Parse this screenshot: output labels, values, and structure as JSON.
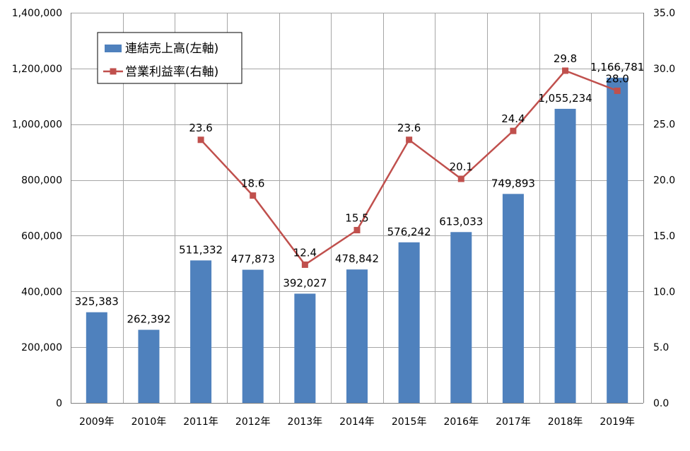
{
  "chart_data": {
    "type": "bar+line",
    "categories": [
      "2009年",
      "2010年",
      "2011年",
      "2012年",
      "2013年",
      "2014年",
      "2015年",
      "2016年",
      "2017年",
      "2018年",
      "2019年"
    ],
    "series": [
      {
        "name": "連結売上高(左軸)",
        "type": "bar",
        "axis": "left",
        "color": "#4f81bd",
        "values": [
          325383,
          262392,
          511332,
          477873,
          392027,
          478842,
          576242,
          613033,
          749893,
          1055234,
          1166781
        ],
        "labels": [
          "325,383",
          "262,392",
          "511,332",
          "477,873",
          "392,027",
          "478,842",
          "576,242",
          "613,033",
          "749,893",
          "1,055,234",
          "1,166,781"
        ]
      },
      {
        "name": "営業利益率(右軸)",
        "type": "line",
        "axis": "right",
        "color": "#c0504d",
        "values": [
          null,
          null,
          23.6,
          18.6,
          12.4,
          15.5,
          23.6,
          20.1,
          24.4,
          29.8,
          28.0
        ],
        "labels": [
          "",
          "",
          "23.6",
          "18.6",
          "12.4",
          "15.5",
          "23.6",
          "20.1",
          "24.4",
          "29.8",
          "28.0"
        ]
      }
    ],
    "y_left": {
      "range": [
        0,
        1400000
      ],
      "ticks": [
        0,
        200000,
        400000,
        600000,
        800000,
        1000000,
        1200000,
        1400000
      ],
      "tick_labels": [
        "0",
        "200,000",
        "400,000",
        "600,000",
        "800,000",
        "1,000,000",
        "1,200,000",
        "1,400,000"
      ]
    },
    "y_right": {
      "range": [
        0,
        35
      ],
      "ticks": [
        0,
        5,
        10,
        15,
        20,
        25,
        30,
        35
      ],
      "tick_labels": [
        "0.0",
        "5.0",
        "10.0",
        "15.0",
        "20.0",
        "25.0",
        "30.0",
        "35.0"
      ]
    },
    "grid": true,
    "legend": {
      "position": "top-left inside",
      "items": [
        "連結売上高(左軸)",
        "営業利益率(右軸)"
      ]
    },
    "title": "",
    "xlabel": "",
    "ylabel": ""
  }
}
